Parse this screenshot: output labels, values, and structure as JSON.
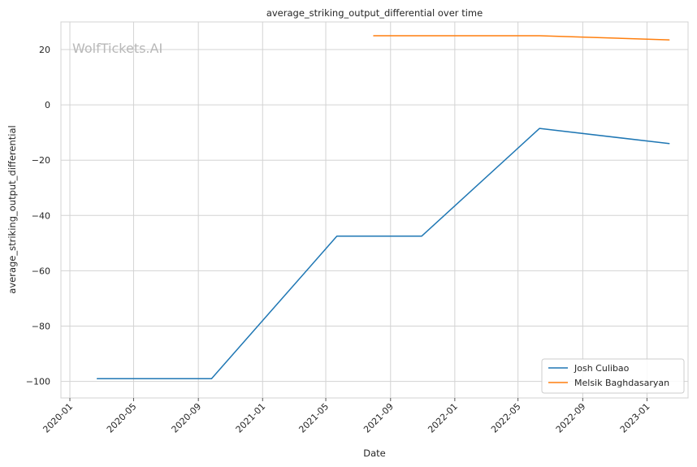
{
  "chart_data": {
    "type": "line",
    "title": "average_striking_output_differential over time",
    "xlabel": "Date",
    "ylabel": "average_striking_output_differential",
    "watermark": "WolfTickets.AI",
    "x_ticks": [
      "2020-01",
      "2020-05",
      "2020-09",
      "2021-01",
      "2021-05",
      "2021-09",
      "2022-01",
      "2022-05",
      "2022-09",
      "2023-01"
    ],
    "y_ticks": [
      20,
      0,
      -20,
      -40,
      -60,
      -80,
      -100
    ],
    "y_tick_labels": [
      "20",
      "0",
      "−20",
      "−40",
      "−60",
      "−80",
      "−100"
    ],
    "ylim": [
      -106,
      30
    ],
    "xlim": [
      "2019-12-15",
      "2023-03-20"
    ],
    "grid": true,
    "legend_position": "bottom-right",
    "series": [
      {
        "name": "Josh Culibao",
        "color": "#1f77b4",
        "x": [
          "2020-02-22",
          "2020-09-26",
          "2021-05-22",
          "2021-10-30",
          "2022-06-11",
          "2023-02-12"
        ],
        "y": [
          -99,
          -99,
          -47.5,
          -47.5,
          -8.5,
          -14
        ]
      },
      {
        "name": "Melsik Baghdasaryan",
        "color": "#ff7f0e",
        "x": [
          "2021-07-31",
          "2022-06-11",
          "2023-02-12"
        ],
        "y": [
          25,
          25,
          23.5
        ]
      }
    ]
  }
}
